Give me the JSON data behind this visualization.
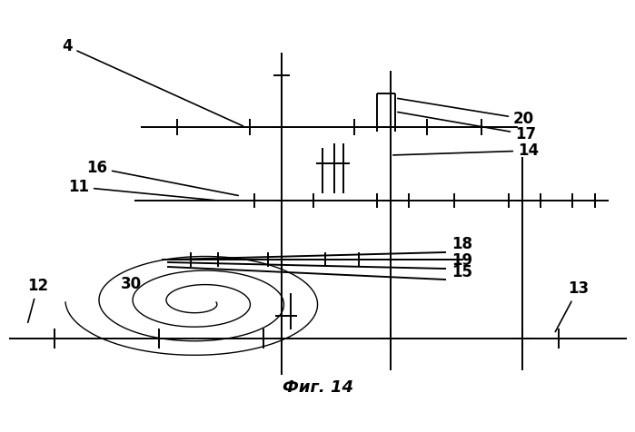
{
  "title": "Фиг. 14",
  "bg_color": "#ffffff",
  "lc": "#000000",
  "lw": 1.4,
  "tlw": 1.0
}
